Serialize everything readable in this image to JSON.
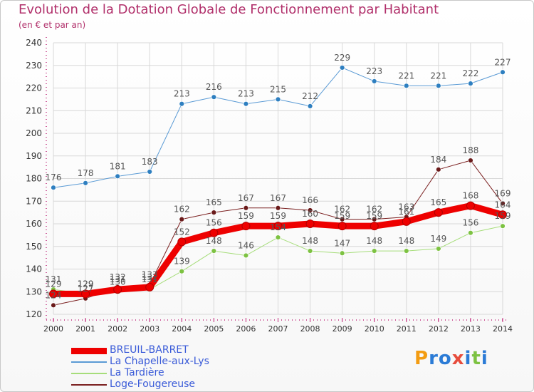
{
  "chart_data": {
    "type": "line",
    "title": "Evolution de la Dotation Globale de Fonctionnement par Habitant",
    "subtitle": "(en € et par an)",
    "xlabel": "",
    "ylabel": "",
    "ylim": [
      120,
      240
    ],
    "yticks": [
      120,
      130,
      140,
      150,
      160,
      170,
      180,
      190,
      200,
      210,
      220,
      230,
      240
    ],
    "grid": true,
    "legend_position": "bottom-left",
    "x": [
      "2000",
      "2001",
      "2002",
      "2003",
      "2004",
      "2005",
      "2006",
      "2007",
      "2008",
      "2009",
      "2010",
      "2011",
      "2012",
      "2013",
      "2014"
    ],
    "series": [
      {
        "name": "La Chapelle-aux-Lys",
        "color": "#5b9bd5",
        "marker": "#2e7fc0",
        "width": 1,
        "values": [
          176,
          178,
          181,
          183,
          213,
          216,
          213,
          215,
          212,
          229,
          223,
          221,
          221,
          222,
          227
        ],
        "labels": [
          "176",
          "178",
          "181",
          "183",
          "213",
          "216",
          "213",
          "215",
          "212",
          "229",
          "223",
          "221",
          "221",
          "222",
          "227"
        ]
      },
      {
        "name": "La Tardière",
        "color": "#a6dd7a",
        "marker": "#7dc242",
        "width": 1,
        "values": [
          131,
          129,
          130,
          131,
          139,
          148,
          146,
          154,
          148,
          147,
          148,
          148,
          149,
          156,
          159
        ],
        "labels": [
          "131",
          "129",
          "130",
          "131",
          "139",
          "148",
          "146",
          "154",
          "148",
          "147",
          "148",
          "148",
          "149",
          "156",
          "159"
        ]
      },
      {
        "name": "Loge-Fougereuse",
        "color": "#7b2020",
        "marker": "#6a1a1a",
        "width": 1,
        "values": [
          124,
          127,
          132,
          133,
          162,
          165,
          167,
          167,
          166,
          162,
          162,
          163,
          184,
          188,
          169
        ],
        "labels": [
          "124",
          "127",
          "132",
          "133",
          "162",
          "165",
          "167",
          "167",
          "166",
          "162",
          "162",
          "163",
          "184",
          "188",
          "169"
        ]
      },
      {
        "name": "BREUIL-BARRET",
        "color": "#ee0000",
        "marker": "#ee0000",
        "width": 9,
        "values": [
          129,
          129,
          131,
          132,
          152,
          156,
          159,
          159,
          160,
          159,
          159,
          161,
          165,
          168,
          164
        ],
        "labels": [
          "129",
          "129",
          "131",
          "132",
          "152",
          "156",
          "159",
          "159",
          "160",
          "159",
          "159",
          "161",
          "165",
          "168",
          "164"
        ]
      }
    ],
    "legend": [
      "BREUIL-BARRET",
      "La Chapelle-aux-Lys",
      "La Tardière",
      "Loge-Fougereuse"
    ]
  },
  "colors": {
    "title": "#b1306b",
    "axis": "#c0287a",
    "grid": "#d8d8d8",
    "label": "#555555",
    "legend_text": "#3a5bd8"
  },
  "logo": {
    "letters": [
      "P",
      "r",
      "o",
      "x",
      "i",
      "t",
      "i"
    ],
    "colors": [
      "#f39c12",
      "#2b7bd6",
      "#2b7bd6",
      "#e74c3c",
      "#2b7bd6",
      "#7dc242",
      "#2b7bd6"
    ]
  }
}
